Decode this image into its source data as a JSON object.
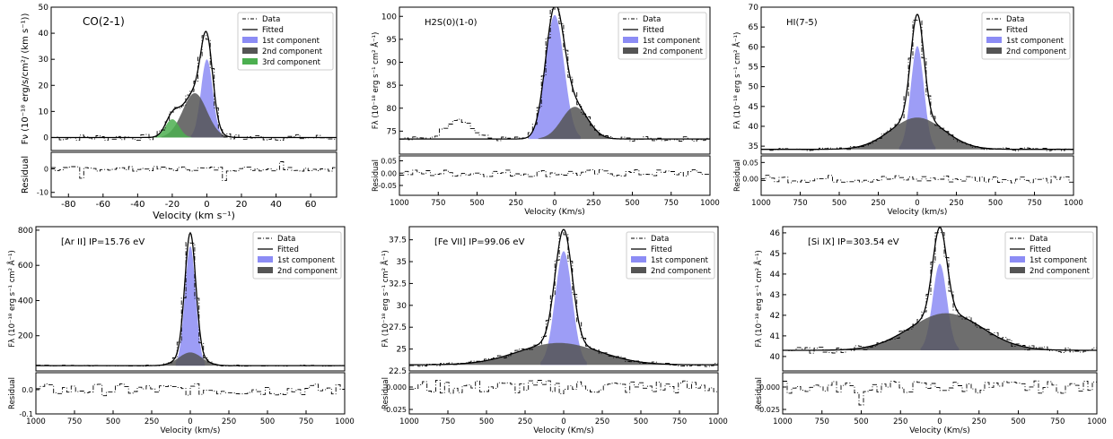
{
  "figure": {
    "note": "Six emission-line profile fits with residual panels"
  },
  "chart_data": [
    {
      "type": "line",
      "title": "CO(2-1)",
      "xlabel": "Velocity (km s⁻¹)",
      "ylabel": "Fν (10⁻¹⁸ erg/s/cm²/ (km s⁻¹))",
      "residual_label": "Residual",
      "xlim": [
        -90,
        75
      ],
      "ylim": [
        -5,
        50
      ],
      "rlim": [
        -12,
        7
      ],
      "xticks": [
        -80,
        -60,
        -40,
        -20,
        0,
        20,
        40,
        60
      ],
      "yticks": [
        0,
        10,
        20,
        30,
        40,
        50
      ],
      "rticks": [
        0,
        -10
      ],
      "legend": [
        "Data",
        "Fitted",
        "1st component",
        "2nd component",
        "3rd component"
      ],
      "components": [
        {
          "name": "1st component",
          "amp": 30,
          "center": 0,
          "sigma": 3.4,
          "color": "#8c8cf5"
        },
        {
          "name": "2nd component",
          "amp": 17,
          "center": -7,
          "sigma": 7,
          "color": "#555555"
        },
        {
          "name": "3rd component",
          "amp": 7,
          "center": -20,
          "sigma": 4,
          "color": "#4caf50"
        }
      ],
      "baseline": 0,
      "noise": 1.2,
      "resnoise": 1.0,
      "spikes": [
        {
          "x": -72,
          "v": -4
        },
        {
          "x": 10,
          "v": -5
        },
        {
          "x": 42,
          "v": 3
        }
      ],
      "bumps": []
    },
    {
      "type": "line",
      "title": "H2S(0)(1-0)",
      "xlabel": "Velocity (Km/s)",
      "ylabel": "Fλ (10⁻¹⁸ erg s⁻¹ cm² Å⁻¹)",
      "residual_label": "Residual",
      "xlim": [
        -1000,
        1000
      ],
      "ylim": [
        70,
        102
      ],
      "rlim": [
        -0.09,
        0.07
      ],
      "xticks": [
        -1000,
        -750,
        -500,
        -250,
        0,
        250,
        500,
        750,
        1000
      ],
      "xticklabels": [
        "1000",
        "750",
        "500",
        "250",
        "0",
        "250",
        "500",
        "750",
        "1000"
      ],
      "yticks": [
        75,
        80,
        85,
        90,
        95,
        100
      ],
      "rticks": [
        0.05,
        0.0,
        -0.05
      ],
      "rticklabels": [
        "0.05",
        "0.00",
        "-0.05"
      ],
      "legend": [
        "Data",
        "Fitted",
        "1st component",
        "2nd component"
      ],
      "components": [
        {
          "name": "1st component",
          "amp": 27,
          "center": 0,
          "sigma": 60,
          "color": "#8c8cf5"
        },
        {
          "name": "2nd component",
          "amp": 7,
          "center": 130,
          "sigma": 85,
          "color": "#555555"
        }
      ],
      "baseline": 73.3,
      "noise": 0.5,
      "resnoise": 0.015,
      "spikes": [],
      "bumps": [
        {
          "center": -620,
          "sigma": 80,
          "amp": 4.5
        }
      ]
    },
    {
      "type": "line",
      "title": "HI(7-5)",
      "xlabel": "Velocity (km/s)",
      "ylabel": "Fλ (10⁻¹⁸ erg s⁻¹ cm² Å⁻¹)",
      "residual_label": "Residual",
      "xlim": [
        -1000,
        1000
      ],
      "ylim": [
        33,
        70
      ],
      "rlim": [
        -0.05,
        0.07
      ],
      "xticks": [
        -1000,
        -750,
        -500,
        -250,
        0,
        250,
        500,
        750,
        1000
      ],
      "xticklabels": [
        "1000",
        "750",
        "500",
        "250",
        "0",
        "250",
        "500",
        "750",
        "1000"
      ],
      "yticks": [
        35,
        40,
        45,
        50,
        55,
        60,
        65,
        70
      ],
      "rticks": [
        0.05,
        0.0
      ],
      "rticklabels": [
        "0.05",
        "0.00"
      ],
      "legend": [
        "Data",
        "Fitted",
        "1st component",
        "2nd component"
      ],
      "components": [
        {
          "name": "1st component",
          "amp": 26,
          "center": 0,
          "sigma": 42,
          "color": "#8c8cf5"
        },
        {
          "name": "2nd component",
          "amp": 8,
          "center": 0,
          "sigma": 170,
          "color": "#555555"
        }
      ],
      "baseline": 34.2,
      "noise": 0.35,
      "resnoise": 0.012,
      "spikes": [],
      "bumps": []
    },
    {
      "type": "line",
      "title": "[Ar II] IP=15.76 eV",
      "xlabel": "Velocity (km/s)",
      "ylabel": "Fλ (10⁻¹⁸ erg s⁻¹ cm² Å⁻¹)",
      "residual_label": "Residual",
      "xlim": [
        -1000,
        1000
      ],
      "ylim": [
        0,
        820
      ],
      "rlim": [
        -0.1,
        0.07
      ],
      "xticks": [
        -1000,
        -750,
        -500,
        -250,
        0,
        250,
        500,
        750,
        1000
      ],
      "xticklabels": [
        "1000",
        "750",
        "500",
        "250",
        "0",
        "250",
        "500",
        "750",
        "1000"
      ],
      "yticks": [
        200,
        400,
        600,
        800
      ],
      "rticks": [
        0.0,
        -0.1
      ],
      "rticklabels": [
        "0.0",
        "-0.1"
      ],
      "legend": [
        "Data",
        "Fitted",
        "1st component",
        "2nd component"
      ],
      "components": [
        {
          "name": "1st component",
          "amp": 680,
          "center": 0,
          "sigma": 35,
          "color": "#8c8cf5"
        },
        {
          "name": "2nd component",
          "amp": 75,
          "center": 0,
          "sigma": 75,
          "color": "#555555"
        }
      ],
      "baseline": 30,
      "noise": 3,
      "resnoise": 0.025,
      "spikes": [],
      "bumps": []
    },
    {
      "type": "line",
      "title": "[Fe VII] IP=99.06 eV",
      "xlabel": "Velocity (Km/s)",
      "ylabel": "Fλ (10⁻¹⁸ erg s⁻¹ cm² Å⁻¹)",
      "residual_label": "Residual",
      "xlim": [
        -1000,
        1000
      ],
      "ylim": [
        22.5,
        39
      ],
      "rlim": [
        -0.03,
        0.016
      ],
      "xticks": [
        -1000,
        -750,
        -500,
        -250,
        0,
        250,
        500,
        750,
        1000
      ],
      "xticklabels": [
        "1000",
        "750",
        "500",
        "250",
        "0",
        "250",
        "500",
        "750",
        "1000"
      ],
      "yticks": [
        22.5,
        25.0,
        27.5,
        30.0,
        32.5,
        35.0,
        37.5
      ],
      "rticks": [
        0.0,
        -0.025
      ],
      "rticklabels": [
        "0.000",
        "-0.025"
      ],
      "legend": [
        "Data",
        "Fitted",
        "1st component",
        "2nd component"
      ],
      "components": [
        {
          "name": "1st component",
          "amp": 13,
          "center": 0,
          "sigma": 55,
          "color": "#8c8cf5"
        },
        {
          "name": "2nd component",
          "amp": 2.5,
          "center": -30,
          "sigma": 260,
          "color": "#555555"
        }
      ],
      "baseline": 23.2,
      "noise": 0.2,
      "resnoise": 0.008,
      "spikes": [],
      "bumps": []
    },
    {
      "type": "line",
      "title": "[Si IX] IP=303.54 eV",
      "xlabel": "Velocity (Km/s)",
      "ylabel": "Fλ (10⁻¹⁸ erg s⁻¹ cm² Å⁻¹)",
      "residual_label": "Residual",
      "xlim": [
        -1000,
        1000
      ],
      "ylim": [
        39.3,
        46.3
      ],
      "rlim": [
        -0.03,
        0.016
      ],
      "xticks": [
        -1000,
        -750,
        -500,
        -250,
        0,
        250,
        500,
        750,
        1000
      ],
      "xticklabels": [
        "1000",
        "750",
        "500",
        "250",
        "0",
        "250",
        "500",
        "750",
        "1000"
      ],
      "yticks": [
        40,
        41,
        42,
        43,
        44,
        45,
        46
      ],
      "rticks": [
        0.0,
        -0.025
      ],
      "rticklabels": [
        "0.000",
        "-0.025"
      ],
      "legend": [
        "Data",
        "Fitted",
        "1st component",
        "2nd component"
      ],
      "components": [
        {
          "name": "1st component",
          "amp": 4.2,
          "center": 0,
          "sigma": 45,
          "color": "#8c8cf5"
        },
        {
          "name": "2nd component",
          "amp": 1.8,
          "center": 40,
          "sigma": 230,
          "color": "#555555"
        }
      ],
      "baseline": 40.3,
      "noise": 0.15,
      "resnoise": 0.007,
      "spikes": [
        {
          "x": -500,
          "v": -0.02
        }
      ],
      "bumps": []
    }
  ]
}
